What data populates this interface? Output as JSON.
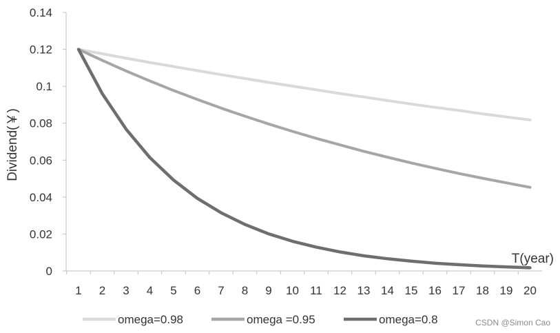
{
  "chart_data": {
    "type": "line",
    "title": "",
    "xlabel": "T(year)",
    "ylabel": "Dividend(￥)",
    "x": [
      1,
      2,
      3,
      4,
      5,
      6,
      7,
      8,
      9,
      10,
      11,
      12,
      13,
      14,
      15,
      16,
      17,
      18,
      19,
      20
    ],
    "ylim": [
      0,
      0.14
    ],
    "yticks": [
      "0",
      "0.02",
      "0.04",
      "0.06",
      "0.08",
      "0.1",
      "0.12",
      "0.14"
    ],
    "ytick_values": [
      0,
      0.02,
      0.04,
      0.06,
      0.08,
      0.1,
      0.12,
      0.14
    ],
    "grid": false,
    "legend_position": "bottom",
    "series": [
      {
        "name": "omega=0.98",
        "color": "#d9d9d9",
        "values": [
          0.12,
          0.1176,
          0.1152,
          0.1129,
          0.1107,
          0.1085,
          0.1063,
          0.1042,
          0.1021,
          0.1001,
          0.0981,
          0.0961,
          0.0942,
          0.0923,
          0.0904,
          0.0886,
          0.0869,
          0.0851,
          0.0834,
          0.0818
        ]
      },
      {
        "name": "omega =0.95",
        "color": "#a6a6a6",
        "values": [
          0.12,
          0.114,
          0.1083,
          0.1029,
          0.0977,
          0.0929,
          0.0882,
          0.0838,
          0.0796,
          0.0756,
          0.0718,
          0.0683,
          0.0648,
          0.0616,
          0.0585,
          0.0556,
          0.0528,
          0.0502,
          0.0477,
          0.0453
        ]
      },
      {
        "name": "omega=0.8",
        "color": "#6e6e6e",
        "values": [
          0.12,
          0.096,
          0.0768,
          0.0614,
          0.0492,
          0.0393,
          0.0315,
          0.0252,
          0.0201,
          0.0161,
          0.0129,
          0.0103,
          0.0082,
          0.0066,
          0.0053,
          0.0042,
          0.0034,
          0.0027,
          0.0022,
          0.0017
        ]
      }
    ]
  },
  "watermark": "CSDN @Simon Cao"
}
